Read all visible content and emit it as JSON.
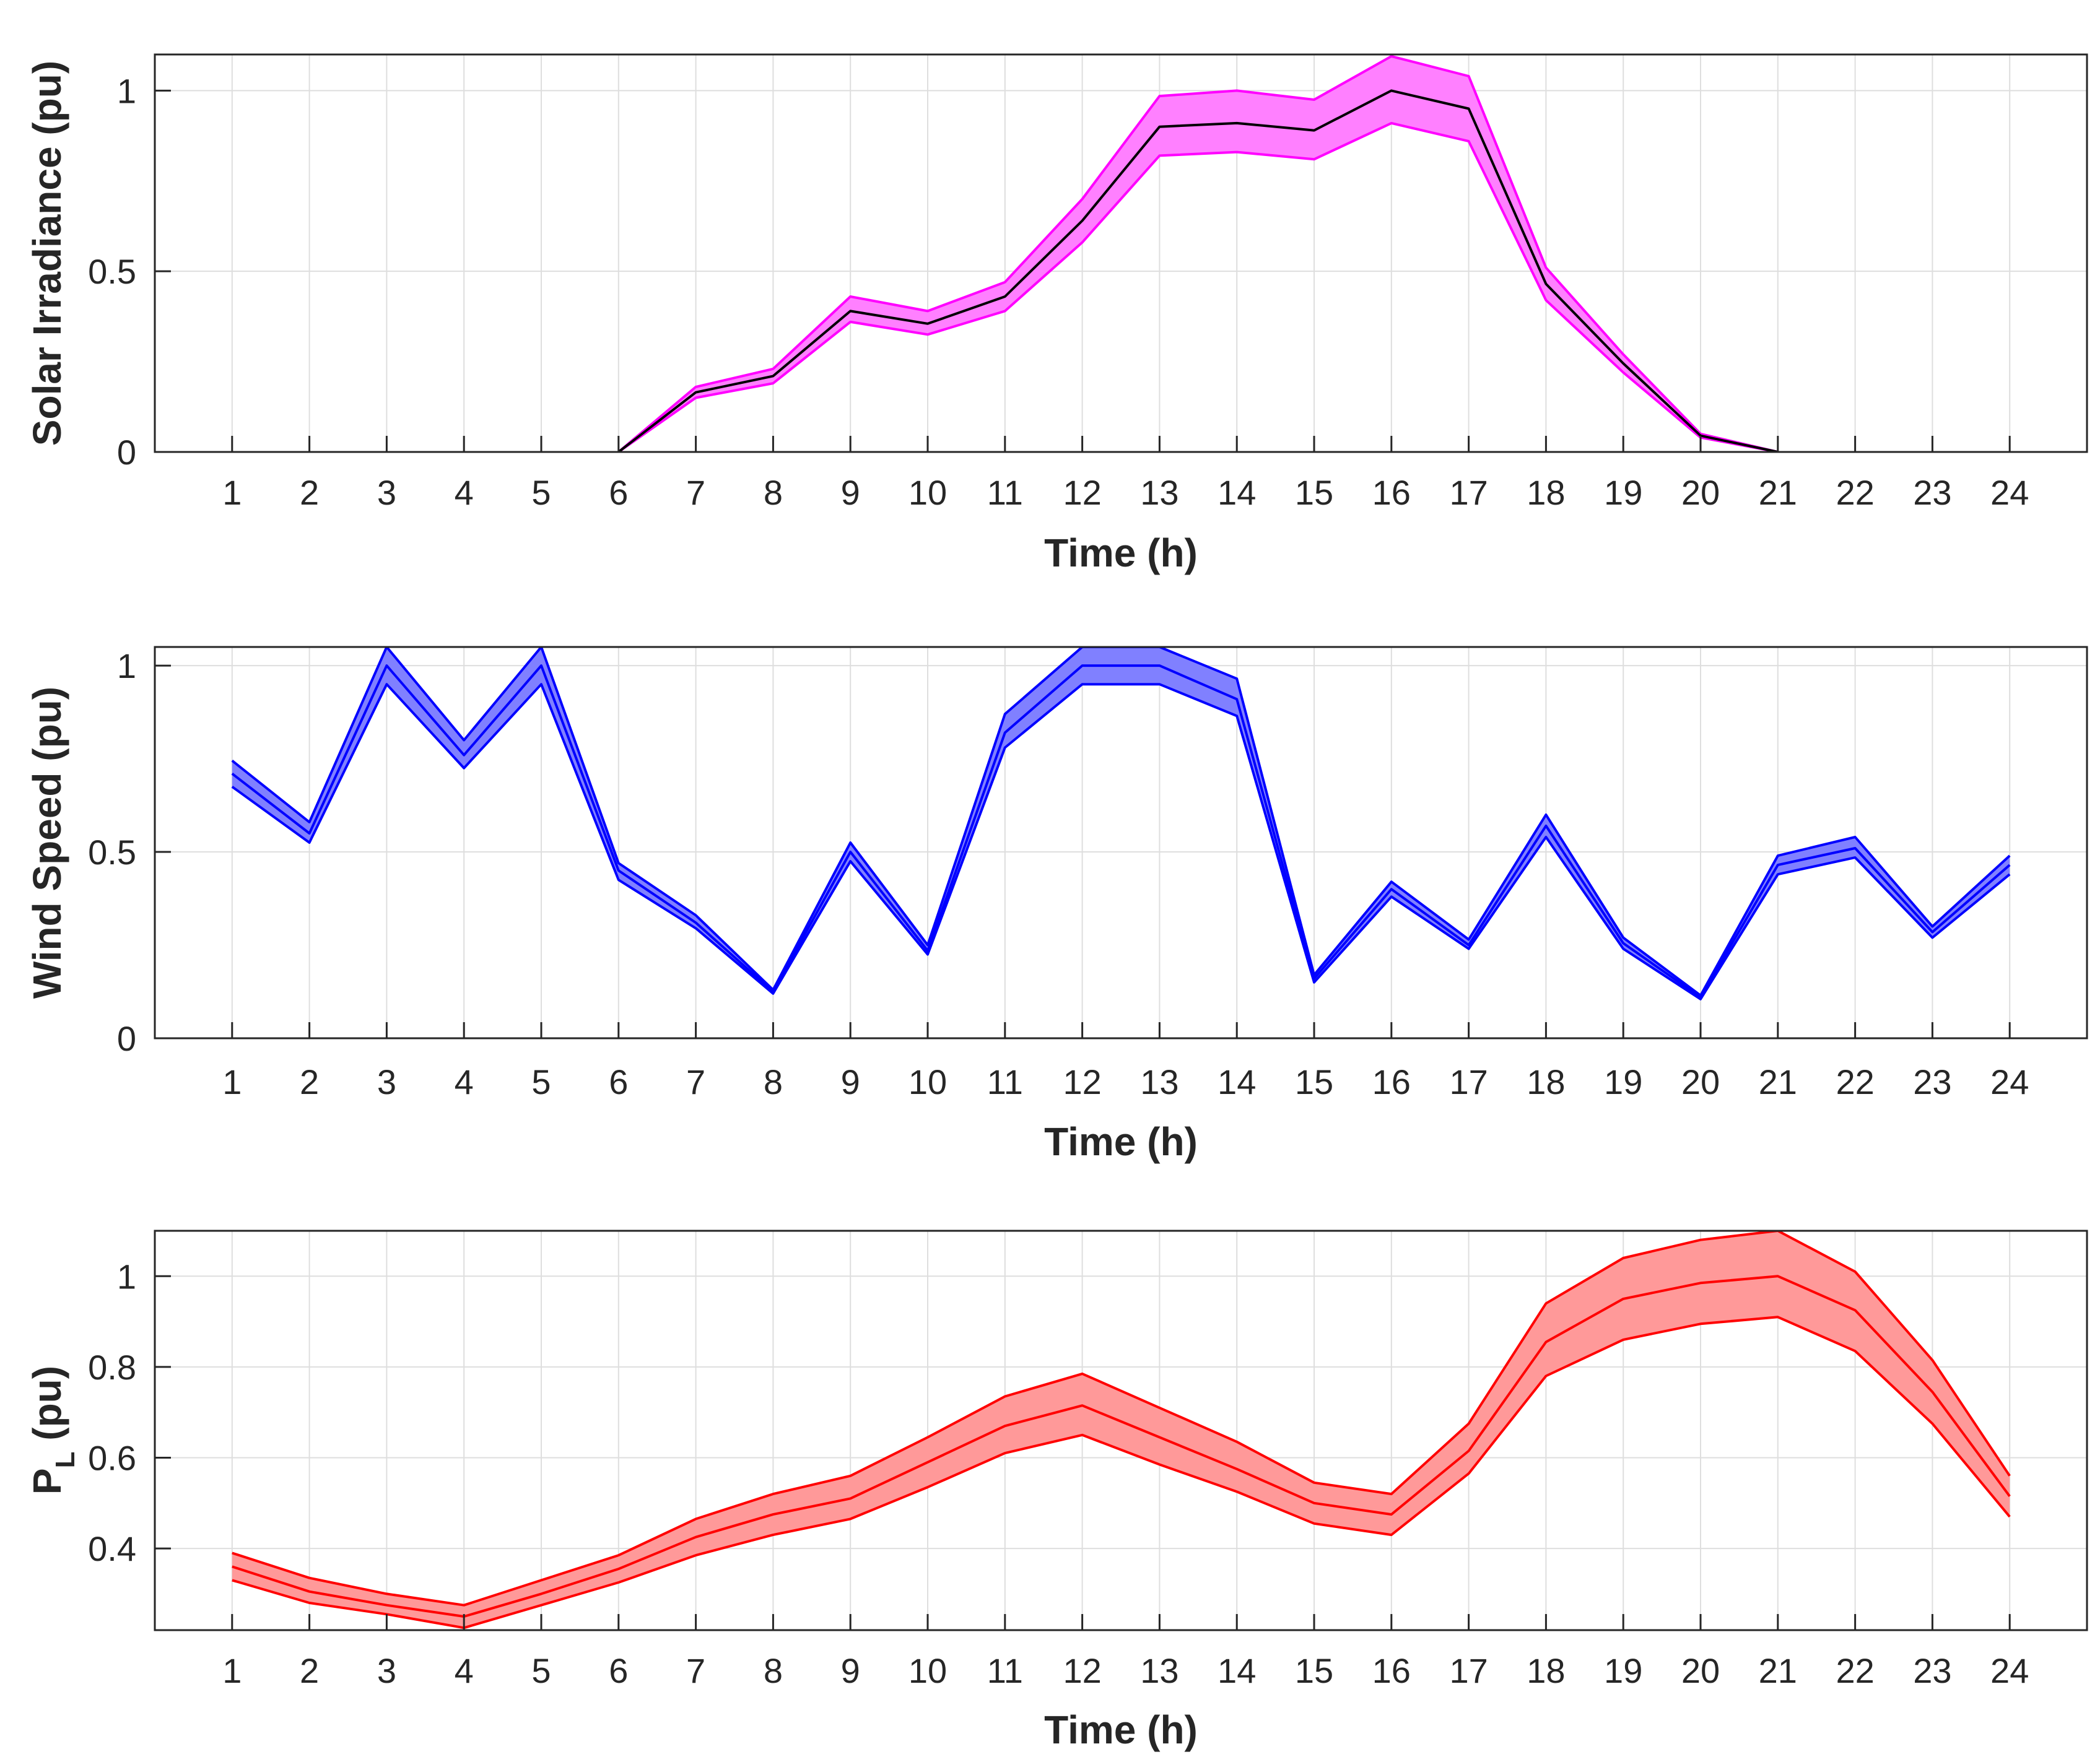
{
  "chart_data": [
    {
      "type": "area",
      "xlabel": "Time (h)",
      "ylabel": "Solar Irradiance (pu)",
      "ylim": [
        0,
        1.1
      ],
      "xlim": [
        0,
        25
      ],
      "x_ticks": [
        1,
        2,
        3,
        4,
        5,
        6,
        7,
        8,
        9,
        10,
        11,
        12,
        13,
        14,
        15,
        16,
        17,
        18,
        19,
        20,
        21,
        22,
        23,
        24
      ],
      "y_ticks": [
        0,
        0.5,
        1
      ],
      "y_tick_labels": [
        "0",
        "0.5",
        "1"
      ],
      "grid": true,
      "band_color": "#ff00ff",
      "band_fill": "#ff80ff",
      "mean_color": "#000000",
      "series": [
        {
          "name": "Mean",
          "x": [
            6,
            7,
            8,
            9,
            10,
            11,
            12,
            13,
            14,
            15,
            16,
            17,
            18,
            19,
            20,
            21
          ],
          "values": [
            0,
            0.165,
            0.21,
            0.39,
            0.355,
            0.43,
            0.64,
            0.9,
            0.91,
            0.89,
            1.0,
            0.95,
            0.465,
            0.245,
            0.045,
            0
          ]
        },
        {
          "name": "Upper",
          "x": [
            6,
            7,
            8,
            9,
            10,
            11,
            12,
            13,
            14,
            15,
            16,
            17,
            18,
            19,
            20,
            21
          ],
          "values": [
            0,
            0.18,
            0.23,
            0.43,
            0.39,
            0.47,
            0.7,
            0.985,
            1.0,
            0.975,
            1.095,
            1.04,
            0.51,
            0.27,
            0.05,
            0
          ]
        },
        {
          "name": "Lower",
          "x": [
            6,
            7,
            8,
            9,
            10,
            11,
            12,
            13,
            14,
            15,
            16,
            17,
            18,
            19,
            20,
            21
          ],
          "values": [
            0,
            0.15,
            0.19,
            0.36,
            0.325,
            0.39,
            0.58,
            0.82,
            0.83,
            0.81,
            0.91,
            0.86,
            0.42,
            0.22,
            0.04,
            0
          ]
        }
      ]
    },
    {
      "type": "area",
      "xlabel": "Time (h)",
      "ylabel": "Wind Speed (pu)",
      "ylim": [
        0,
        1.05
      ],
      "xlim": [
        0,
        25
      ],
      "x_ticks": [
        1,
        2,
        3,
        4,
        5,
        6,
        7,
        8,
        9,
        10,
        11,
        12,
        13,
        14,
        15,
        16,
        17,
        18,
        19,
        20,
        21,
        22,
        23,
        24
      ],
      "y_ticks": [
        0,
        0.5,
        1
      ],
      "y_tick_labels": [
        "0",
        "0.5",
        "1"
      ],
      "grid": true,
      "band_color": "#0000ff",
      "band_fill": "#8080ff",
      "mean_color": "#0000ff",
      "series": [
        {
          "name": "Mean",
          "x": [
            1,
            2,
            3,
            4,
            5,
            6,
            7,
            8,
            9,
            10,
            11,
            12,
            13,
            14,
            15,
            16,
            17,
            18,
            19,
            20,
            21,
            22,
            23,
            24
          ],
          "values": [
            0.71,
            0.55,
            1.0,
            0.76,
            1.0,
            0.45,
            0.31,
            0.125,
            0.5,
            0.235,
            0.82,
            1.0,
            1.0,
            0.91,
            0.16,
            0.4,
            0.25,
            0.57,
            0.255,
            0.11,
            0.465,
            0.51,
            0.285,
            0.465
          ]
        },
        {
          "name": "Upper",
          "x": [
            1,
            2,
            3,
            4,
            5,
            6,
            7,
            8,
            9,
            10,
            11,
            12,
            13,
            14,
            15,
            16,
            17,
            18,
            19,
            20,
            21,
            22,
            23,
            24
          ],
          "values": [
            0.745,
            0.58,
            1.05,
            0.8,
            1.05,
            0.47,
            0.33,
            0.13,
            0.525,
            0.25,
            0.87,
            1.05,
            1.05,
            0.965,
            0.17,
            0.42,
            0.265,
            0.6,
            0.27,
            0.115,
            0.49,
            0.54,
            0.3,
            0.49
          ]
        },
        {
          "name": "Lower",
          "x": [
            1,
            2,
            3,
            4,
            5,
            6,
            7,
            8,
            9,
            10,
            11,
            12,
            13,
            14,
            15,
            16,
            17,
            18,
            19,
            20,
            21,
            22,
            23,
            24
          ],
          "values": [
            0.675,
            0.525,
            0.95,
            0.725,
            0.95,
            0.425,
            0.295,
            0.12,
            0.475,
            0.225,
            0.78,
            0.95,
            0.95,
            0.865,
            0.15,
            0.38,
            0.24,
            0.54,
            0.24,
            0.105,
            0.44,
            0.485,
            0.27,
            0.44
          ]
        }
      ]
    },
    {
      "type": "area",
      "xlabel": "Time (h)",
      "ylabel": "P",
      "ylabel_sub": "L",
      "ylabel_suffix": " (pu)",
      "ylim": [
        0.22,
        1.1
      ],
      "xlim": [
        0,
        25
      ],
      "x_ticks": [
        1,
        2,
        3,
        4,
        5,
        6,
        7,
        8,
        9,
        10,
        11,
        12,
        13,
        14,
        15,
        16,
        17,
        18,
        19,
        20,
        21,
        22,
        23,
        24
      ],
      "y_ticks": [
        0.4,
        0.6,
        0.8,
        1
      ],
      "y_tick_labels": [
        "0.4",
        "0.6",
        "0.8",
        "1"
      ],
      "grid": true,
      "band_color": "#ff0000",
      "band_fill": "#ff9999",
      "mean_color": "#ff0000",
      "series": [
        {
          "name": "Mean",
          "x": [
            1,
            2,
            3,
            4,
            5,
            6,
            7,
            8,
            9,
            10,
            11,
            12,
            13,
            14,
            15,
            16,
            17,
            18,
            19,
            20,
            21,
            22,
            23,
            24
          ],
          "values": [
            0.36,
            0.305,
            0.275,
            0.25,
            0.3,
            0.355,
            0.425,
            0.475,
            0.51,
            0.59,
            0.67,
            0.715,
            0.645,
            0.575,
            0.5,
            0.475,
            0.615,
            0.855,
            0.95,
            0.985,
            1.0,
            0.925,
            0.745,
            0.515
          ]
        },
        {
          "name": "Upper",
          "x": [
            1,
            2,
            3,
            4,
            5,
            6,
            7,
            8,
            9,
            10,
            11,
            12,
            13,
            14,
            15,
            16,
            17,
            18,
            19,
            20,
            21,
            22,
            23,
            24
          ],
          "values": [
            0.39,
            0.335,
            0.3,
            0.275,
            0.33,
            0.385,
            0.465,
            0.52,
            0.56,
            0.645,
            0.735,
            0.785,
            0.71,
            0.635,
            0.545,
            0.52,
            0.675,
            0.94,
            1.04,
            1.08,
            1.1,
            1.01,
            0.815,
            0.56
          ]
        },
        {
          "name": "Lower",
          "x": [
            1,
            2,
            3,
            4,
            5,
            6,
            7,
            8,
            9,
            10,
            11,
            12,
            13,
            14,
            15,
            16,
            17,
            18,
            19,
            20,
            21,
            22,
            23,
            24
          ],
          "values": [
            0.33,
            0.28,
            0.255,
            0.225,
            0.275,
            0.325,
            0.385,
            0.43,
            0.465,
            0.535,
            0.61,
            0.65,
            0.585,
            0.525,
            0.455,
            0.43,
            0.565,
            0.78,
            0.86,
            0.895,
            0.91,
            0.835,
            0.675,
            0.47
          ]
        }
      ]
    }
  ]
}
